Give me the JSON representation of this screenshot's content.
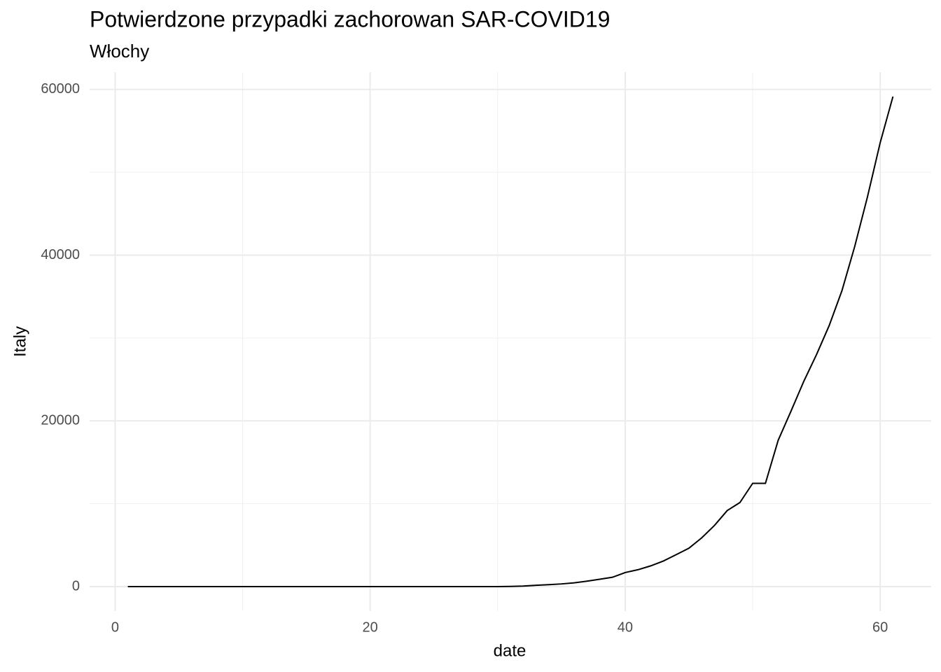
{
  "chart_data": {
    "type": "line",
    "title": "Potwierdzone przypadki zachorowan SAR-COVID19",
    "subtitle": "Włochy",
    "x_label": "date",
    "y_label": "Italy",
    "x": [
      1,
      2,
      3,
      4,
      5,
      6,
      7,
      8,
      9,
      10,
      11,
      12,
      13,
      14,
      15,
      16,
      17,
      18,
      19,
      20,
      21,
      22,
      23,
      24,
      25,
      26,
      27,
      28,
      29,
      30,
      31,
      32,
      33,
      34,
      35,
      36,
      37,
      38,
      39,
      40,
      41,
      42,
      43,
      44,
      45,
      46,
      47,
      48,
      49,
      50,
      51,
      52,
      53,
      54,
      55,
      56,
      57,
      58,
      59,
      60,
      61
    ],
    "series": [
      {
        "name": "Italy",
        "color": "#000000",
        "values": [
          0,
          0,
          0,
          0,
          0,
          0,
          0,
          0,
          0,
          2,
          2,
          2,
          2,
          2,
          2,
          2,
          3,
          3,
          3,
          3,
          3,
          3,
          3,
          3,
          3,
          3,
          3,
          3,
          3,
          3,
          20,
          62,
          155,
          229,
          322,
          453,
          655,
          888,
          1128,
          1694,
          2036,
          2502,
          3089,
          3858,
          4636,
          5883,
          7375,
          9172,
          10149,
          12462,
          12462,
          17660,
          21157,
          24747,
          27980,
          31506,
          35713,
          41035,
          47021,
          53578,
          59138
        ]
      }
    ],
    "xlim": [
      -2,
      64
    ],
    "ylim": [
      -2957,
      62095
    ],
    "xticks": [
      0,
      20,
      40,
      60
    ],
    "yticks": [
      0,
      20000,
      40000,
      60000
    ],
    "x_minor_grid": [
      10,
      30,
      50
    ],
    "y_minor_grid": [
      10000,
      30000,
      50000
    ],
    "grid": true
  }
}
